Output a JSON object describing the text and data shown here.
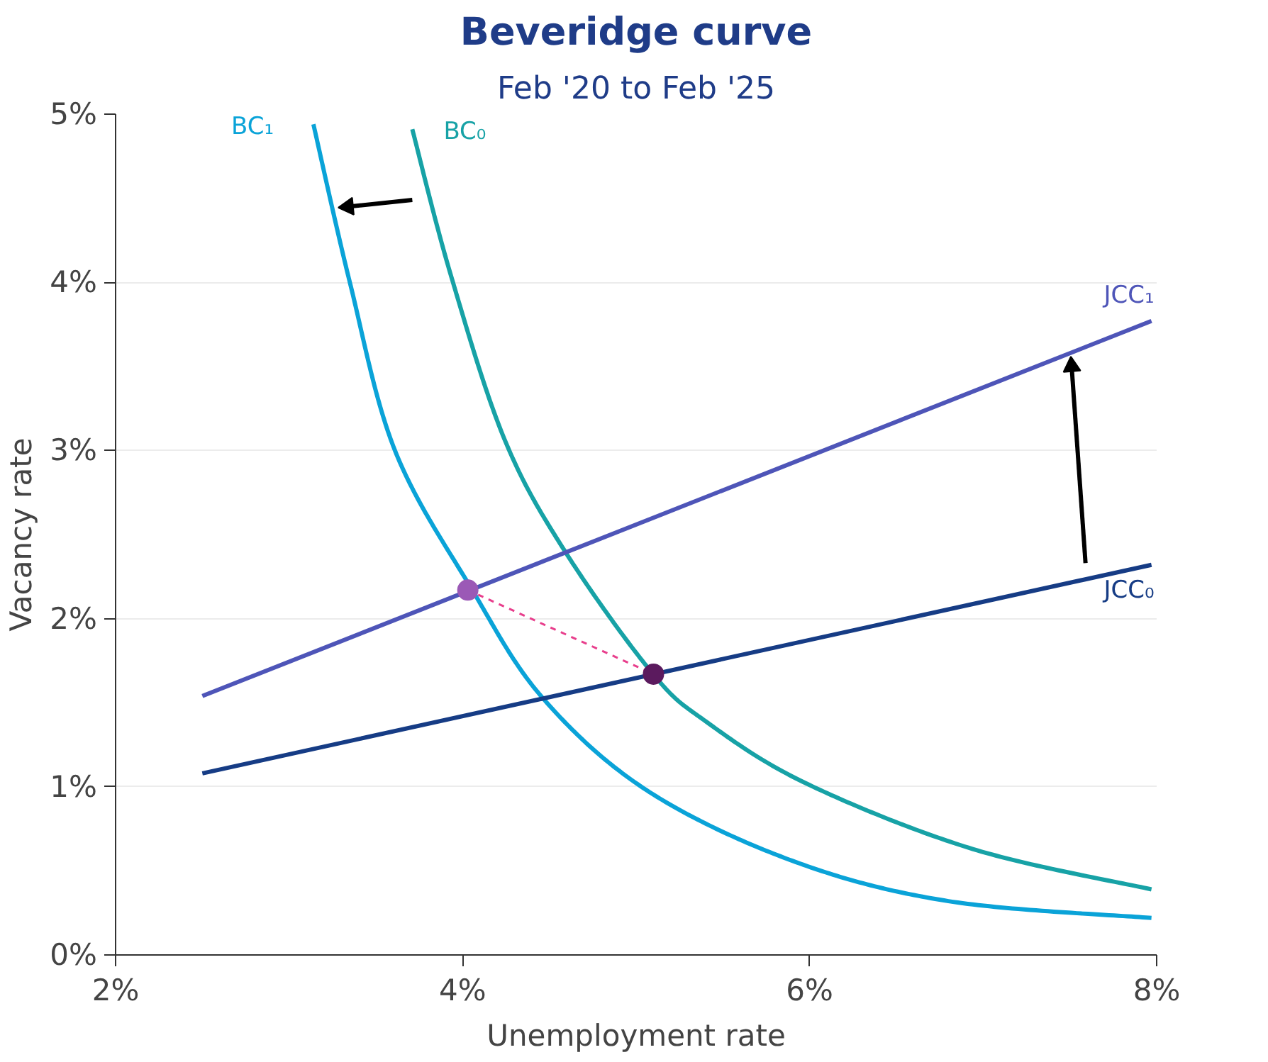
{
  "chart_data": {
    "type": "line",
    "title": "Beveridge curve",
    "subtitle": "Feb '20 to Feb '25",
    "xlabel": "Unemployment rate",
    "ylabel": "Vacancy rate",
    "xlim": [
      2,
      8
    ],
    "ylim": [
      0,
      5
    ],
    "xticks": [
      {
        "value": 2,
        "label": "2%"
      },
      {
        "value": 4,
        "label": "4%"
      },
      {
        "value": 6,
        "label": "6%"
      },
      {
        "value": 8,
        "label": "8%"
      }
    ],
    "yticks": [
      {
        "value": 0,
        "label": "0%"
      },
      {
        "value": 1,
        "label": "1%"
      },
      {
        "value": 2,
        "label": "2%"
      },
      {
        "value": 3,
        "label": "3%"
      },
      {
        "value": 4,
        "label": "4%"
      },
      {
        "value": 5,
        "label": "5%"
      }
    ],
    "grid": "y",
    "marker": "none",
    "line_style": "solid",
    "series": [
      {
        "name": "BC₁",
        "color": "#0aa3d8",
        "x": [
          3.14,
          3.35,
          3.61,
          4.05,
          4.46,
          5.06,
          5.9,
          6.8,
          7.97
        ],
        "values": [
          4.94,
          4.0,
          3.0,
          2.18,
          1.53,
          0.98,
          0.56,
          0.32,
          0.22
        ]
      },
      {
        "name": "BC₀",
        "color": "#17a2a6",
        "x": [
          3.71,
          3.93,
          4.24,
          4.59,
          5.09,
          5.4,
          5.98,
          6.94,
          7.97
        ],
        "values": [
          4.91,
          4.05,
          3.07,
          2.4,
          1.68,
          1.39,
          1.02,
          0.63,
          0.39
        ]
      },
      {
        "name": "JCC₁",
        "color": "#4e55b8",
        "x": [
          2.5,
          7.97
        ],
        "values": [
          1.54,
          3.77
        ]
      },
      {
        "name": "JCC₀",
        "color": "#163c85",
        "x": [
          2.5,
          7.97
        ],
        "values": [
          1.08,
          2.32
        ]
      },
      {
        "type": "line",
        "line_style": "dashed",
        "color": "#e83e8c",
        "x": [
          4.03,
          5.1
        ],
        "values": [
          2.17,
          1.67
        ]
      },
      {
        "type": "scatter",
        "marker": "circle",
        "colors": [
          "#9b59b6",
          "#5b1a5e"
        ],
        "x": [
          4.03,
          5.1
        ],
        "values": [
          2.17,
          1.67
        ]
      },
      {
        "type": "line",
        "marker": "triangle",
        "color": "#000000",
        "x": [
          3.71,
          3.34
        ],
        "values": [
          4.49,
          4.45
        ]
      },
      {
        "type": "line",
        "marker": "triangle",
        "color": "#000000",
        "x": [
          7.59,
          7.51
        ],
        "values": [
          2.33,
          3.5
        ]
      }
    ]
  }
}
